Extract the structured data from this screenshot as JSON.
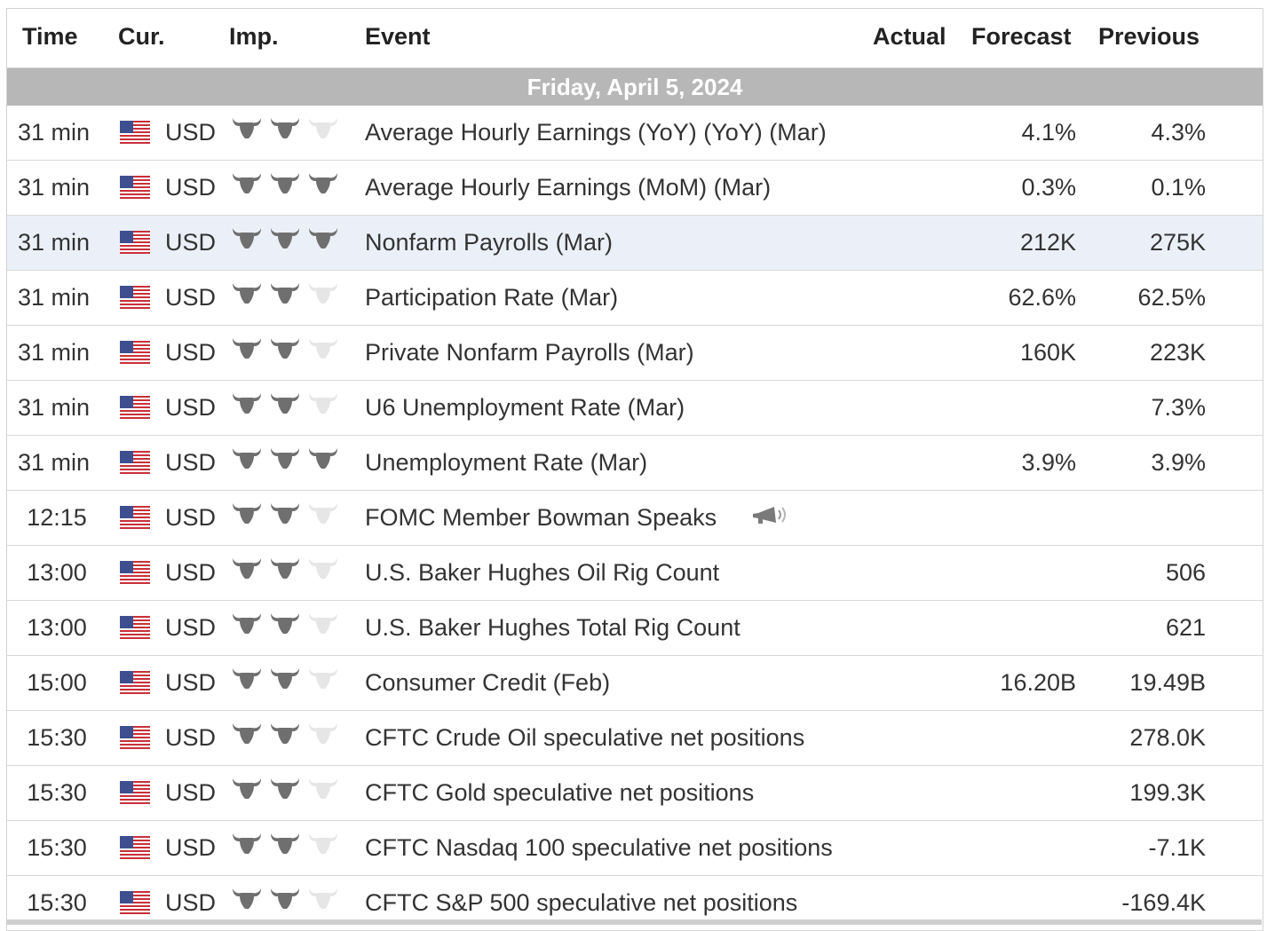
{
  "header": {
    "time": "Time",
    "currency": "Cur.",
    "importance": "Imp.",
    "event": "Event",
    "actual": "Actual",
    "forecast": "Forecast",
    "previous": "Previous"
  },
  "date_label": "Friday, April 5, 2024",
  "colors": {
    "bull_active": "#6f6f6f",
    "bull_inactive": "#e6e6e6",
    "date_bar": "#b7b7b7",
    "highlight_row": "#ebf0f8"
  },
  "rows": [
    {
      "time": "31 min",
      "cur": "USD",
      "imp": 2,
      "event": "Average Hourly Earnings (YoY) (YoY) (Mar)",
      "actual": "",
      "forecast": "4.1%",
      "previous": "4.3%"
    },
    {
      "time": "31 min",
      "cur": "USD",
      "imp": 3,
      "event": "Average Hourly Earnings (MoM) (Mar)",
      "actual": "",
      "forecast": "0.3%",
      "previous": "0.1%"
    },
    {
      "time": "31 min",
      "cur": "USD",
      "imp": 3,
      "event": "Nonfarm Payrolls (Mar)",
      "actual": "",
      "forecast": "212K",
      "previous": "275K",
      "highlight": true
    },
    {
      "time": "31 min",
      "cur": "USD",
      "imp": 2,
      "event": "Participation Rate (Mar)",
      "actual": "",
      "forecast": "62.6%",
      "previous": "62.5%"
    },
    {
      "time": "31 min",
      "cur": "USD",
      "imp": 2,
      "event": "Private Nonfarm Payrolls (Mar)",
      "actual": "",
      "forecast": "160K",
      "previous": "223K"
    },
    {
      "time": "31 min",
      "cur": "USD",
      "imp": 2,
      "event": "U6 Unemployment Rate (Mar)",
      "actual": "",
      "forecast": "",
      "previous": "7.3%"
    },
    {
      "time": "31 min",
      "cur": "USD",
      "imp": 3,
      "event": "Unemployment Rate (Mar)",
      "actual": "",
      "forecast": "3.9%",
      "previous": "3.9%"
    },
    {
      "time": "12:15",
      "cur": "USD",
      "imp": 2,
      "event": "FOMC Member Bowman Speaks",
      "actual": "",
      "forecast": "",
      "previous": "",
      "speech": true
    },
    {
      "time": "13:00",
      "cur": "USD",
      "imp": 2,
      "event": "U.S. Baker Hughes Oil Rig Count",
      "actual": "",
      "forecast": "",
      "previous": "506"
    },
    {
      "time": "13:00",
      "cur": "USD",
      "imp": 2,
      "event": "U.S. Baker Hughes Total Rig Count",
      "actual": "",
      "forecast": "",
      "previous": "621"
    },
    {
      "time": "15:00",
      "cur": "USD",
      "imp": 2,
      "event": "Consumer Credit (Feb)",
      "actual": "",
      "forecast": "16.20B",
      "previous": "19.49B"
    },
    {
      "time": "15:30",
      "cur": "USD",
      "imp": 2,
      "event": "CFTC Crude Oil speculative net positions",
      "actual": "",
      "forecast": "",
      "previous": "278.0K"
    },
    {
      "time": "15:30",
      "cur": "USD",
      "imp": 2,
      "event": "CFTC Gold speculative net positions",
      "actual": "",
      "forecast": "",
      "previous": "199.3K"
    },
    {
      "time": "15:30",
      "cur": "USD",
      "imp": 2,
      "event": "CFTC Nasdaq 100 speculative net positions",
      "actual": "",
      "forecast": "",
      "previous": "-7.1K"
    },
    {
      "time": "15:30",
      "cur": "USD",
      "imp": 2,
      "event": "CFTC S&P 500 speculative net positions",
      "actual": "",
      "forecast": "",
      "previous": "-169.4K"
    }
  ]
}
